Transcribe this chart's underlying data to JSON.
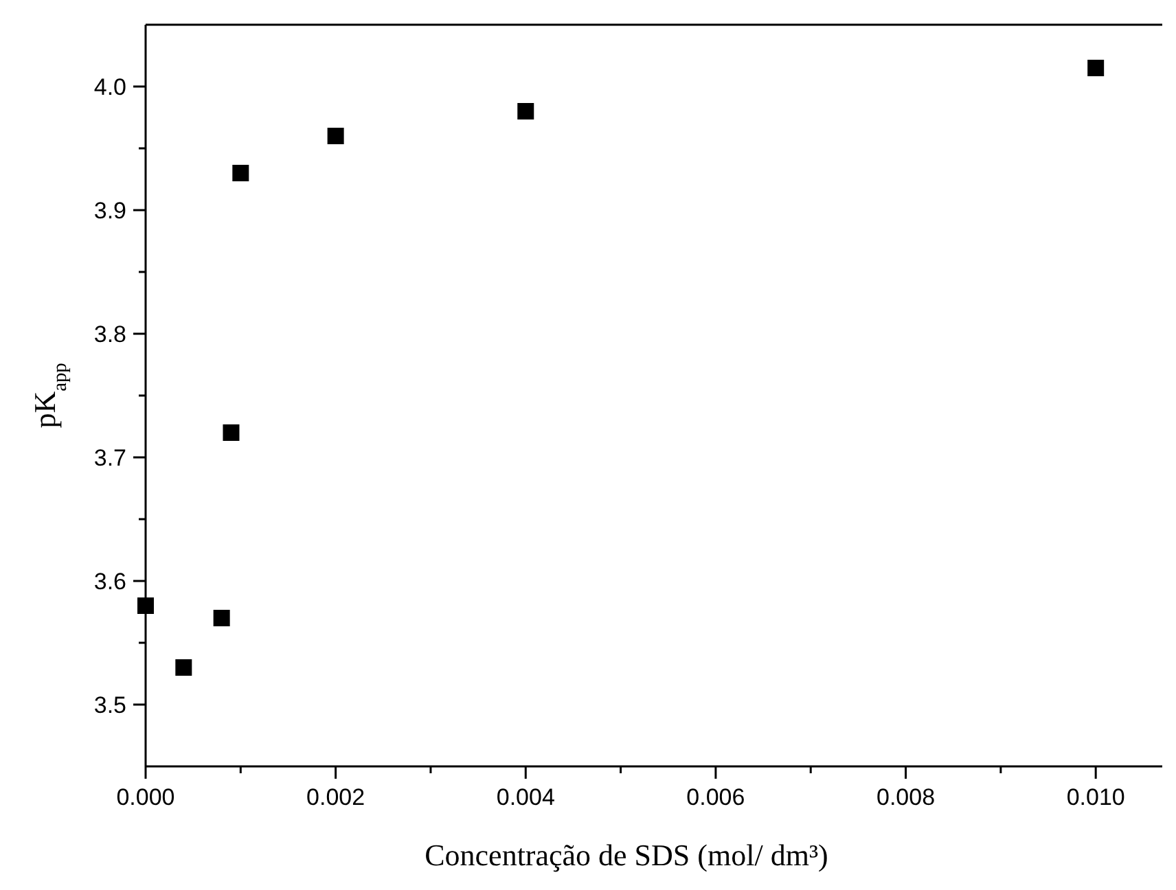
{
  "chart_data": {
    "type": "scatter",
    "xlabel": "Concentração de SDS (mol/ dm³)",
    "ylabel": "pK$_{app}$",
    "x": [
      0,
      0.0004,
      0.0008,
      0.0009,
      0.001,
      0.002,
      0.004,
      0.01
    ],
    "series": [
      {
        "color": "#000000",
        "values": [
          3.58,
          3.53,
          3.57,
          3.72,
          3.93,
          3.96,
          3.98,
          4.015
        ]
      }
    ],
    "marker": "square",
    "grid": false,
    "xlim": [
      0,
      0.0107
    ],
    "ylim": [
      3.45,
      4.05
    ],
    "xticks": [
      "0.000",
      {
        "value": 0.001,
        "label": null
      },
      {
        "value": 0.002,
        "label": "0.002"
      },
      {
        "value": 0.003,
        "label": null
      },
      {
        "value": 0.004,
        "label": "0.004"
      },
      {
        "value": 0.005,
        "label": null
      },
      {
        "value": 0.006,
        "label": "0.006"
      },
      {
        "value": 0.007,
        "label": null
      },
      {
        "value": 0.008,
        "label": "0.008"
      },
      {
        "value": 0.009,
        "label": null
      },
      {
        "value": 0.01,
        "label": "0.010"
      }
    ],
    "yticks": [
      {
        "value": 3.5,
        "label": "3.5"
      },
      {
        "value": 3.55,
        "label": null
      },
      {
        "value": 3.6,
        "label": "3.6"
      },
      {
        "value": 3.65,
        "label": null
      },
      {
        "value": 3.7,
        "label": "3.7"
      },
      {
        "value": 3.75,
        "label": null
      },
      {
        "value": 3.8,
        "label": "3.8"
      },
      {
        "value": 3.85,
        "label": null
      },
      {
        "value": 3.9,
        "label": "3.9"
      },
      {
        "value": 3.95,
        "label": null
      },
      {
        "value": 4.0,
        "label": "4.0"
      }
    ]
  }
}
